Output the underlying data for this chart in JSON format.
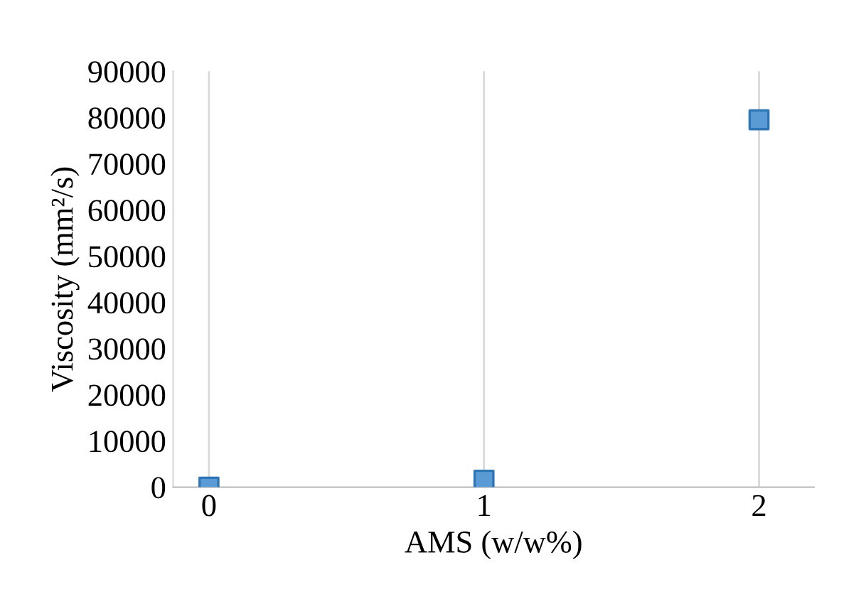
{
  "chart_data": {
    "type": "scatter",
    "xlabel": "AMS (w/w%)",
    "ylabel": "Viscosity (mm²/s)",
    "x": [
      0,
      1,
      2
    ],
    "series": [
      {
        "color": "#5b9bd5",
        "values": [
          0,
          1500,
          79500
        ]
      }
    ],
    "xlim": [
      -0.13,
      2.2
    ],
    "xticks": [
      0,
      1,
      2
    ],
    "ylim": [
      0,
      90000
    ],
    "yticks": [
      0,
      10000,
      20000,
      30000,
      40000,
      50000,
      60000,
      70000,
      80000,
      90000
    ],
    "grid": "x",
    "marker": "square",
    "legend": false
  }
}
